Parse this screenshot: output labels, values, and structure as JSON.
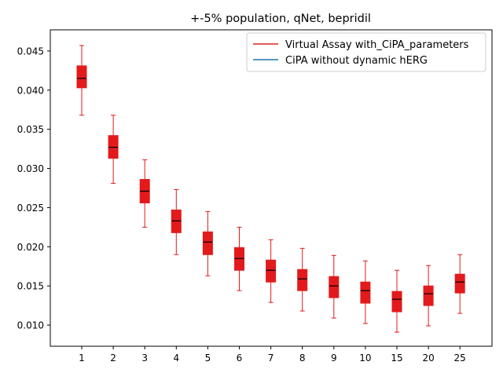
{
  "chart_data": {
    "type": "box",
    "title": "+-5% population, qNet, bepridil",
    "xlabel": "",
    "ylabel": "",
    "categories": [
      "1",
      "2",
      "3",
      "4",
      "5",
      "6",
      "7",
      "8",
      "9",
      "10",
      "15",
      "20",
      "25"
    ],
    "ylim": [
      0.0073,
      0.0477
    ],
    "yticks": [
      0.01,
      0.015,
      0.02,
      0.025,
      0.03,
      0.035,
      0.04,
      0.045
    ],
    "ytick_labels": [
      "0.010",
      "0.015",
      "0.020",
      "0.025",
      "0.030",
      "0.035",
      "0.040",
      "0.045"
    ],
    "grid": false,
    "legend_position": "top-right",
    "legend": [
      {
        "label": "Virtual Assay with_CiPA_parameters",
        "color": "#d62728"
      },
      {
        "label": "CiPA without dynamic hERG",
        "color": "#1f77b4"
      }
    ],
    "box_color": "#e31a1c",
    "median_color": "#000000",
    "series": [
      {
        "name": "Virtual Assay with_CiPA_parameters",
        "boxes": [
          {
            "whislo": 0.0368,
            "q1": 0.0403,
            "med": 0.0415,
            "q3": 0.0431,
            "whishi": 0.0457
          },
          {
            "whislo": 0.0281,
            "q1": 0.0313,
            "med": 0.0327,
            "q3": 0.0342,
            "whishi": 0.0368
          },
          {
            "whislo": 0.0225,
            "q1": 0.0256,
            "med": 0.0271,
            "q3": 0.0286,
            "whishi": 0.0311
          },
          {
            "whislo": 0.019,
            "q1": 0.0218,
            "med": 0.0233,
            "q3": 0.0247,
            "whishi": 0.0273
          },
          {
            "whislo": 0.0163,
            "q1": 0.019,
            "med": 0.0206,
            "q3": 0.0219,
            "whishi": 0.0245
          },
          {
            "whislo": 0.0144,
            "q1": 0.017,
            "med": 0.0185,
            "q3": 0.0199,
            "whishi": 0.0225
          },
          {
            "whislo": 0.0129,
            "q1": 0.0155,
            "med": 0.017,
            "q3": 0.0183,
            "whishi": 0.0209
          },
          {
            "whislo": 0.0118,
            "q1": 0.0144,
            "med": 0.0159,
            "q3": 0.0171,
            "whishi": 0.0198
          },
          {
            "whislo": 0.0109,
            "q1": 0.0135,
            "med": 0.015,
            "q3": 0.0162,
            "whishi": 0.0189
          },
          {
            "whislo": 0.0102,
            "q1": 0.0128,
            "med": 0.0144,
            "q3": 0.0155,
            "whishi": 0.0182
          },
          {
            "whislo": 0.0091,
            "q1": 0.0117,
            "med": 0.0133,
            "q3": 0.0143,
            "whishi": 0.017
          },
          {
            "whislo": 0.0099,
            "q1": 0.0125,
            "med": 0.014,
            "q3": 0.015,
            "whishi": 0.0176
          },
          {
            "whislo": 0.0115,
            "q1": 0.0141,
            "med": 0.0155,
            "q3": 0.0165,
            "whishi": 0.019
          }
        ]
      }
    ]
  }
}
